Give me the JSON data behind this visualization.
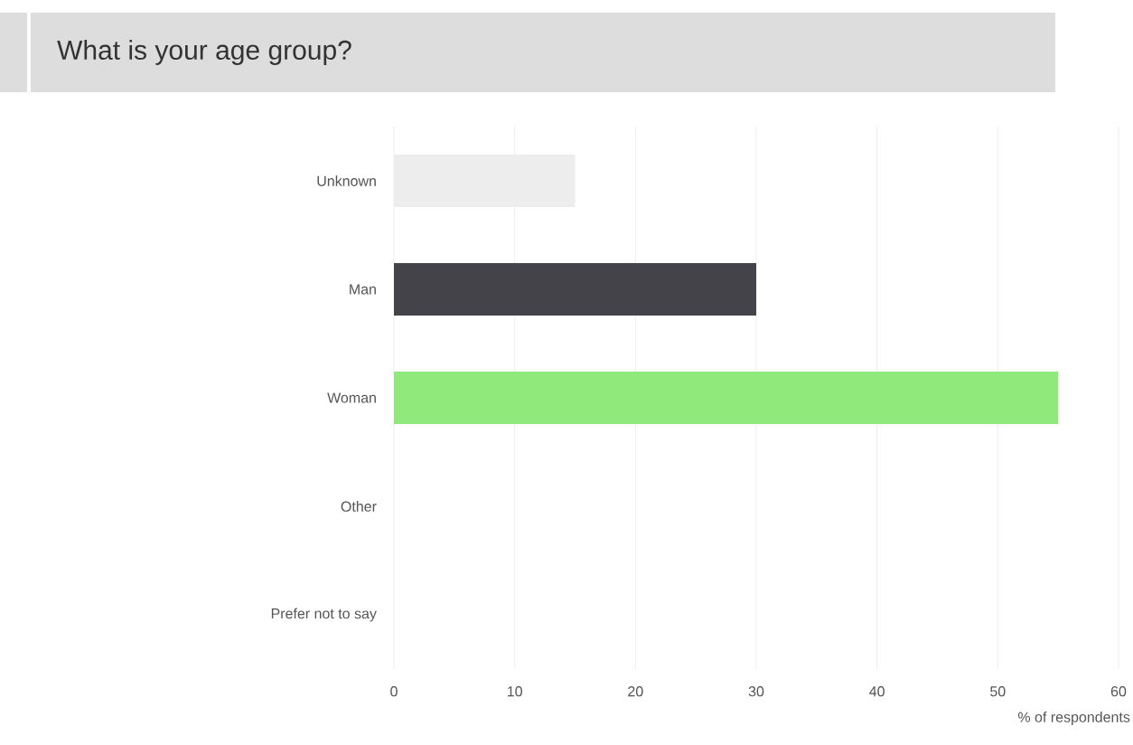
{
  "chart_data": {
    "type": "bar",
    "orientation": "horizontal",
    "title": "What is your age group?",
    "xlabel": "% of respondents",
    "categories": [
      "Unknown",
      "Man",
      "Woman",
      "Other",
      "Prefer not to say"
    ],
    "values": [
      15,
      30,
      55,
      0,
      0
    ],
    "colors": [
      "#ededed",
      "#45434a",
      "#90e97b",
      "#cccccc",
      "#cccccc"
    ],
    "xlim": [
      0,
      60
    ],
    "xticks": [
      0,
      10,
      20,
      30,
      40,
      50,
      60
    ],
    "grid": "x"
  }
}
